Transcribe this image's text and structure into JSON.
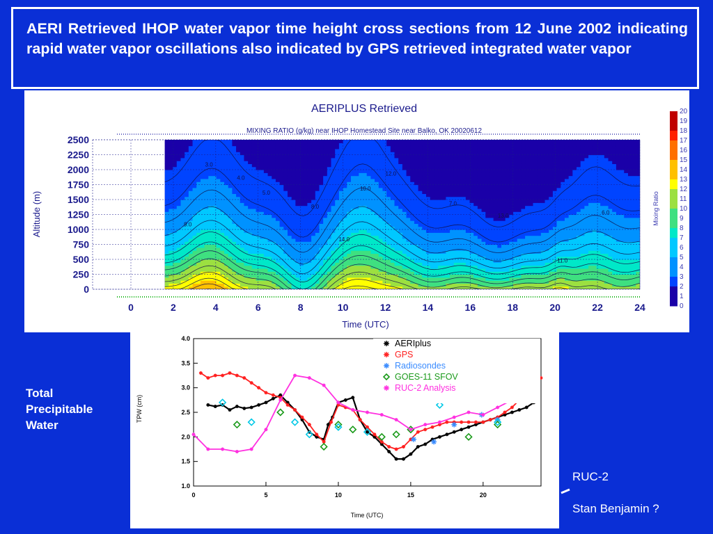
{
  "slide": {
    "title": "AERI Retrieved IHOP water vapor time height cross sections from 12 June 2002 indicating rapid water vapor oscillations also indicated by GPS retrieved integrated water vapor",
    "side_label": "Total Precipitable Water",
    "ruc_label": "RUC-2",
    "credit": "Stan Benjamin ?",
    "colors": {
      "background": "#0a2fd6",
      "text": "#ffffff"
    }
  },
  "chart_data": [
    {
      "type": "heatmap",
      "title": "AERIPLUS Retrieved",
      "subtitle": "MIXING RATIO (g/kg)    near IHOP Homestead Site near Balko, OK 20020612",
      "xlabel": "Time (UTC)",
      "ylabel": "Altitude (m)",
      "colorbar_label": "Mixing  Ratio",
      "x_ticks": [
        "0",
        "2",
        "4",
        "6",
        "8",
        "10",
        "12",
        "14",
        "16",
        "18",
        "20",
        "22",
        "24"
      ],
      "y_ticks": [
        "2500",
        "2250",
        "2000",
        "1750",
        "1500",
        "1250",
        "1000",
        "750",
        "500",
        "250",
        "0"
      ],
      "colorbar_ticks": [
        "20",
        "19",
        "18",
        "17",
        "16",
        "15",
        "14",
        "13",
        "12",
        "11",
        "10",
        "9",
        "8",
        "7",
        "6",
        "5",
        "4",
        "3",
        "2",
        "1",
        "0"
      ],
      "xlim": [
        0,
        24
      ],
      "ylim": [
        0,
        2500
      ],
      "data_start_x": 1.6,
      "zlim": [
        0,
        20
      ],
      "contour_labels": [
        "3.0",
        "4.0",
        "5.0",
        "8.0",
        "10.0",
        "12.0",
        "13.0",
        "11.0",
        "9.0",
        "7.0",
        "6.0",
        "14.0"
      ],
      "colors": [
        "#1a00a8",
        "#0044ff",
        "#0092ff",
        "#00c8ff",
        "#00e8c8",
        "#3fe080",
        "#9ce040",
        "#ffff00",
        "#ffc000",
        "#ff7000",
        "#ff2000",
        "#c00000"
      ],
      "grid": true
    },
    {
      "type": "line",
      "xlabel": "Time (UTC)",
      "ylabel": "TPW (cm)",
      "x_ticks": [
        "0",
        "5",
        "10",
        "15",
        "20"
      ],
      "y_ticks": [
        "4.0",
        "3.5",
        "3.0",
        "2.5",
        "2.0",
        "1.5",
        "1.0"
      ],
      "xlim": [
        0,
        24
      ],
      "ylim": [
        1.0,
        4.0
      ],
      "legend_position": "top-right",
      "series": [
        {
          "name": "AERIplus",
          "color": "#000000",
          "marker": "asterisk",
          "x": [
            1.0,
            1.5,
            2.0,
            2.5,
            3.0,
            3.5,
            4.0,
            4.5,
            5.0,
            5.5,
            6.0,
            6.5,
            7.0,
            7.5,
            8.0,
            8.5,
            9.0,
            9.3,
            9.6,
            10.0,
            10.5,
            11.0,
            11.5,
            12.0,
            12.5,
            13.0,
            13.5,
            14.0,
            14.5,
            15.0,
            15.5,
            16.0,
            16.5,
            17.0,
            17.5,
            18.0,
            18.5,
            19.0,
            19.5,
            20.0,
            20.5,
            21.0,
            21.5,
            22.0,
            22.5,
            23.0,
            23.5
          ],
          "values": [
            2.65,
            2.62,
            2.65,
            2.55,
            2.62,
            2.58,
            2.6,
            2.65,
            2.7,
            2.78,
            2.85,
            2.7,
            2.55,
            2.35,
            2.1,
            2.0,
            1.95,
            2.25,
            2.4,
            2.7,
            2.75,
            2.8,
            2.35,
            2.1,
            2.0,
            1.85,
            1.7,
            1.55,
            1.55,
            1.65,
            1.8,
            1.85,
            1.95,
            2.0,
            2.05,
            2.1,
            2.15,
            2.2,
            2.25,
            2.3,
            2.35,
            2.4,
            2.45,
            2.5,
            2.55,
            2.6,
            2.7
          ]
        },
        {
          "name": "GPS",
          "color": "#ff2020",
          "marker": "asterisk",
          "x": [
            0.5,
            1.0,
            1.5,
            2.0,
            2.5,
            3.0,
            3.5,
            4.0,
            4.5,
            5.0,
            5.5,
            6.0,
            6.5,
            7.0,
            7.5,
            8.0,
            8.5,
            9.0,
            9.5,
            10.0,
            10.5,
            11.0,
            11.5,
            12.0,
            12.5,
            13.0,
            13.5,
            14.0,
            14.5,
            15.0,
            15.5,
            16.0,
            16.5,
            17.0,
            17.5,
            18.0,
            18.5,
            19.0,
            19.5,
            20.0,
            20.5,
            21.0,
            21.5,
            22.0,
            22.5,
            23.0,
            23.5,
            24.0
          ],
          "values": [
            3.3,
            3.2,
            3.25,
            3.25,
            3.3,
            3.25,
            3.2,
            3.1,
            3.0,
            2.9,
            2.85,
            2.8,
            2.65,
            2.55,
            2.4,
            2.25,
            2.05,
            1.9,
            2.3,
            2.65,
            2.6,
            2.55,
            2.35,
            2.2,
            2.05,
            1.9,
            1.8,
            1.75,
            1.8,
            1.95,
            2.1,
            2.15,
            2.2,
            2.25,
            2.3,
            2.3,
            2.3,
            2.3,
            2.3,
            2.3,
            2.35,
            2.4,
            2.5,
            2.6,
            2.75,
            2.9,
            3.05,
            3.2
          ]
        },
        {
          "name": "Radiosondes",
          "color": "#3a8cff",
          "marker": "asterisk",
          "x": [
            15.2,
            16.6,
            18.0,
            19.9,
            21.0,
            22.6
          ],
          "values": [
            1.95,
            1.9,
            2.25,
            2.45,
            2.35,
            3.0
          ]
        },
        {
          "name": "GOES-11 SFOV",
          "color": "#1a9a1a",
          "marker": "diamond",
          "x": [
            3.0,
            6.0,
            9.0,
            10.0,
            11.0,
            13.0,
            14.0,
            15.0,
            19.0,
            21.0
          ],
          "values": [
            2.25,
            2.5,
            1.8,
            2.25,
            2.15,
            2.0,
            2.05,
            2.15,
            2.0,
            2.25
          ]
        },
        {
          "name": "RUC-2 Analysis",
          "color": "#ff30e0",
          "marker": "asterisk",
          "x": [
            0,
            1,
            2,
            3,
            4,
            5,
            6,
            7,
            8,
            9,
            10,
            11,
            12,
            13,
            14,
            15,
            16,
            17,
            18,
            19,
            20,
            21,
            22,
            23
          ],
          "values": [
            2.05,
            1.75,
            1.75,
            1.7,
            1.75,
            2.15,
            2.75,
            3.25,
            3.2,
            3.05,
            2.7,
            2.55,
            2.5,
            2.45,
            2.35,
            2.15,
            2.25,
            2.3,
            2.4,
            2.5,
            2.45,
            2.6,
            2.75,
            2.95
          ]
        },
        {
          "name": "cyan-diamonds",
          "color": "#00c8e6",
          "marker": "diamond",
          "x": [
            2.0,
            4.0,
            7.0,
            8.0,
            10.0,
            12.0,
            17.0,
            21.0
          ],
          "values": [
            2.7,
            2.3,
            2.3,
            2.05,
            2.2,
            2.1,
            2.65,
            2.3
          ]
        }
      ],
      "legend": [
        {
          "series": "AERIplus",
          "label": "AERIplus"
        },
        {
          "series": "GPS",
          "label": "GPS"
        },
        {
          "series": "Radiosondes",
          "label": "Radiosondes"
        },
        {
          "series": "GOES-11 SFOV",
          "label": "GOES-11 SFOV"
        },
        {
          "series": "RUC-2 Analysis",
          "label": "RUC-2 Analysis"
        }
      ]
    }
  ]
}
